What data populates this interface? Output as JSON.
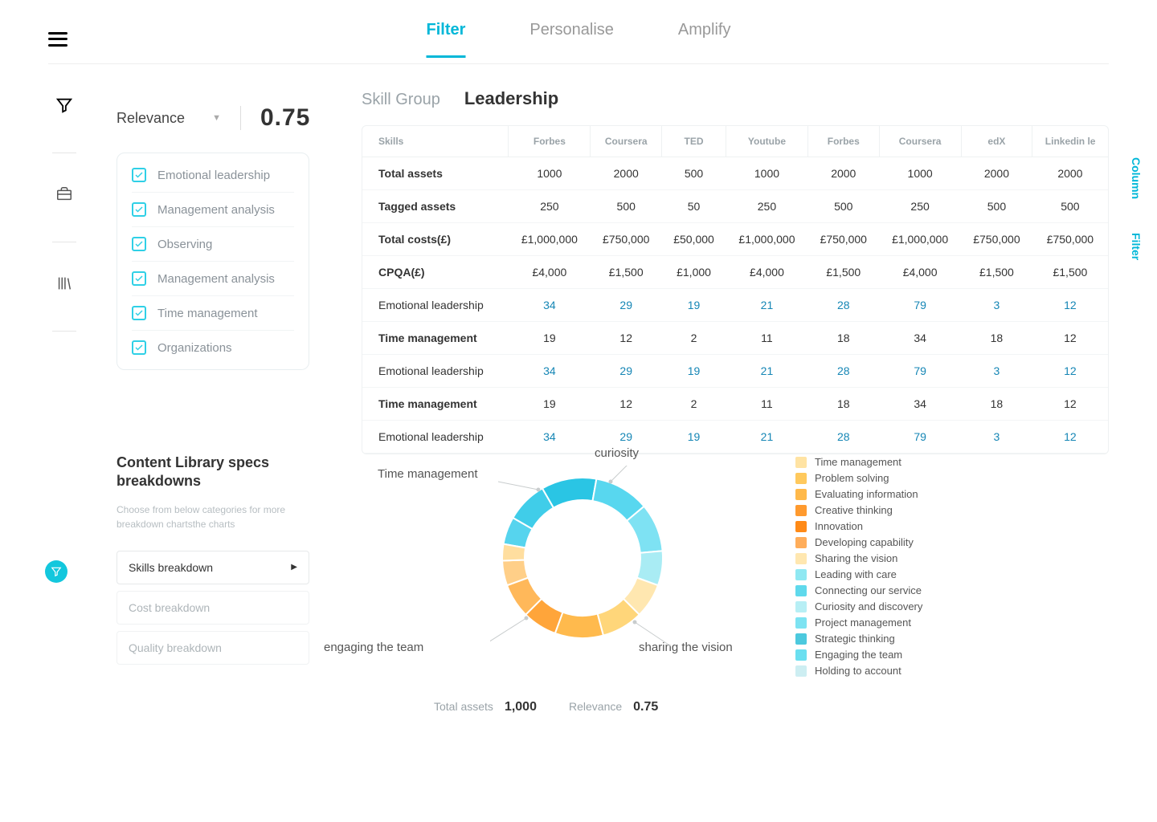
{
  "topbar": {
    "tabs": [
      "Filter",
      "Personalise",
      "Amplify"
    ],
    "active": 0
  },
  "relevance": {
    "label": "Relevance",
    "value": "0.75"
  },
  "skills_panel": [
    "Emotional leadership",
    "Management analysis",
    "Observing",
    "Management analysis",
    "Time management",
    "Organizations"
  ],
  "skill_group": {
    "label": "Skill Group",
    "value": "Leadership"
  },
  "table": {
    "header_first": "Skills",
    "sources": [
      "Forbes",
      "Coursera",
      "TED",
      "Youtube",
      "Forbes",
      "Coursera",
      "edX",
      "Linkedin le"
    ],
    "summary_rows": [
      {
        "label": "Total assets",
        "cells": [
          "1000",
          "2000",
          "500",
          "1000",
          "2000",
          "1000",
          "2000",
          "2000"
        ]
      },
      {
        "label": "Tagged assets",
        "cells": [
          "250",
          "500",
          "50",
          "250",
          "500",
          "250",
          "500",
          "500"
        ]
      },
      {
        "label": "Total costs(£)",
        "cells": [
          "£1,000,000",
          "£750,000",
          "£50,000",
          "£1,000,000",
          "£750,000",
          "£1,000,000",
          "£750,000",
          "£750,000"
        ]
      },
      {
        "label": "CPQA(£)",
        "cells": [
          "£4,000",
          "£1,500",
          "£1,000",
          "£4,000",
          "£1,500",
          "£4,000",
          "£1,500",
          "£1,500"
        ]
      }
    ],
    "data_rows": [
      {
        "label": "Emotional leadership",
        "link": true,
        "cells": [
          "34",
          "29",
          "19",
          "21",
          "28",
          "79",
          "3",
          "12"
        ]
      },
      {
        "label": "Time management",
        "link": false,
        "cells": [
          "19",
          "12",
          "2",
          "11",
          "18",
          "34",
          "18",
          "12"
        ]
      },
      {
        "label": "Emotional leadership",
        "link": true,
        "cells": [
          "34",
          "29",
          "19",
          "21",
          "28",
          "79",
          "3",
          "12"
        ]
      },
      {
        "label": "Time management",
        "link": false,
        "cells": [
          "19",
          "12",
          "2",
          "11",
          "18",
          "34",
          "18",
          "12"
        ]
      },
      {
        "label": "Emotional leadership",
        "link": true,
        "cells": [
          "34",
          "29",
          "19",
          "21",
          "28",
          "79",
          "3",
          "12"
        ]
      }
    ]
  },
  "breakdown": {
    "title": "Content Library specs breakdowns",
    "subtitle": "Choose from below categories for  more breakdown chartsthe charts",
    "items": [
      {
        "label": "Skills breakdown",
        "active": true
      },
      {
        "label": "Cost breakdown",
        "active": false
      },
      {
        "label": "Quality breakdown",
        "active": false
      }
    ]
  },
  "donut": {
    "callouts": {
      "curiosity": "curiosity",
      "time_mgmt": "Time management",
      "engaging": "engaging the team",
      "sharing": "sharing the vision"
    },
    "segments": [
      {
        "start": -80,
        "end": -60,
        "color": "#56d4ee"
      },
      {
        "start": -60,
        "end": -30,
        "color": "#40cde9"
      },
      {
        "start": -30,
        "end": 10,
        "color": "#2ac5e4"
      },
      {
        "start": 10,
        "end": 50,
        "color": "#58d7ef"
      },
      {
        "start": 50,
        "end": 85,
        "color": "#7ee2f3"
      },
      {
        "start": 85,
        "end": 110,
        "color": "#a9ecf4"
      },
      {
        "start": 110,
        "end": 135,
        "color": "#ffe7b0"
      },
      {
        "start": 135,
        "end": 165,
        "color": "#ffd67a"
      },
      {
        "start": 165,
        "end": 200,
        "color": "#ffba4d"
      },
      {
        "start": 200,
        "end": 225,
        "color": "#ffa53a"
      },
      {
        "start": 225,
        "end": 250,
        "color": "#ffb85a"
      },
      {
        "start": 250,
        "end": 268,
        "color": "#ffcf88"
      },
      {
        "start": 268,
        "end": 280,
        "color": "#ffde9f"
      }
    ],
    "stats": {
      "k1": "Total assets",
      "v1": "1,000",
      "k2": "Relevance",
      "v2": "0.75"
    }
  },
  "legend": [
    {
      "c": "#ffe3a3",
      "t": "Time management"
    },
    {
      "c": "#ffc95d",
      "t": "Problem solving"
    },
    {
      "c": "#ffb94a",
      "t": "Evaluating information"
    },
    {
      "c": "#ff9a2e",
      "t": "Creative thinking"
    },
    {
      "c": "#ff8a17",
      "t": "Innovation"
    },
    {
      "c": "#ffad5a",
      "t": "Developing capability"
    },
    {
      "c": "#ffe7b0",
      "t": "Sharing the vision"
    },
    {
      "c": "#8fe8f2",
      "t": "Leading with care"
    },
    {
      "c": "#5fd9ec",
      "t": "Connecting our service"
    },
    {
      "c": "#b7eff5",
      "t": "Curiosity and discovery"
    },
    {
      "c": "#7de3f2",
      "t": "Project management"
    },
    {
      "c": "#4cc9de",
      "t": "Strategic thinking"
    },
    {
      "c": "#6adff0",
      "t": "Engaging the team"
    },
    {
      "c": "#cdeef2",
      "t": "Holding to account"
    }
  ],
  "right_labels": {
    "column": "Column",
    "filter": "Filter"
  }
}
